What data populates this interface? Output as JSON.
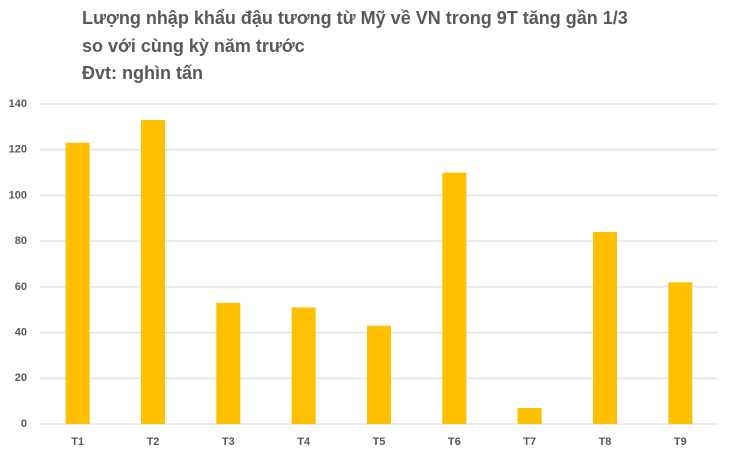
{
  "chart_data": {
    "type": "bar",
    "title": [
      "Lượng nhập khẩu đậu tương từ Mỹ về VN trong 9T tăng gần 1/3",
      "so với cùng kỳ năm trước"
    ],
    "subtitle": "Đvt: nghìn tấn",
    "categories": [
      "T1",
      "T2",
      "T3",
      "T4",
      "T5",
      "T6",
      "T7",
      "T8",
      "T9"
    ],
    "values": [
      123,
      133,
      53,
      51,
      43,
      110,
      7,
      84,
      62
    ],
    "color": "#ffc000",
    "ylim": [
      0,
      140
    ],
    "yticks": [
      0,
      20,
      40,
      60,
      80,
      100,
      120,
      140
    ],
    "grid": true
  }
}
